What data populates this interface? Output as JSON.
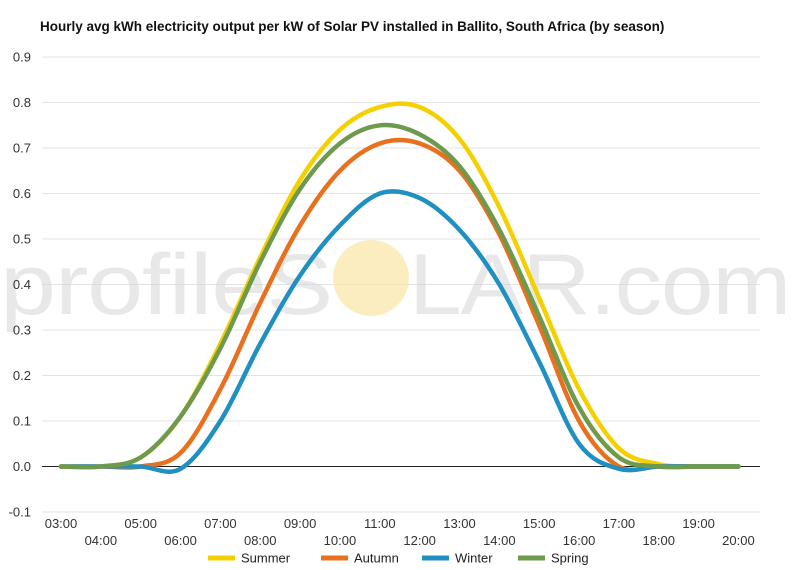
{
  "chart_data": {
    "type": "line",
    "title": "Hourly avg kWh electricity output per kW of Solar PV installed in Ballito, South Africa (by season)",
    "x": [
      "03:00",
      "04:00",
      "05:00",
      "06:00",
      "07:00",
      "08:00",
      "09:00",
      "10:00",
      "11:00",
      "12:00",
      "13:00",
      "14:00",
      "15:00",
      "16:00",
      "17:00",
      "18:00",
      "19:00",
      "20:00"
    ],
    "ylim": [
      -0.1,
      0.9
    ],
    "yticks": [
      "-0.1",
      "0.0",
      "0.1",
      "0.2",
      "0.3",
      "0.4",
      "0.5",
      "0.6",
      "0.7",
      "0.8",
      "0.9"
    ],
    "grid": true,
    "legend_position": "bottom",
    "series": [
      {
        "name": "Summer",
        "color": "#f5d000",
        "values": [
          0.0,
          0.0,
          0.02,
          0.11,
          0.27,
          0.46,
          0.63,
          0.74,
          0.79,
          0.79,
          0.72,
          0.57,
          0.37,
          0.17,
          0.04,
          0.005,
          0.0,
          0.0
        ]
      },
      {
        "name": "Autumn",
        "color": "#e8701e",
        "values": [
          0.0,
          0.0,
          0.0,
          0.03,
          0.17,
          0.36,
          0.53,
          0.65,
          0.71,
          0.71,
          0.65,
          0.51,
          0.31,
          0.1,
          0.0,
          0.0,
          0.0,
          0.0
        ]
      },
      {
        "name": "Winter",
        "color": "#2090c2",
        "values": [
          0.0,
          0.0,
          0.0,
          -0.005,
          0.1,
          0.27,
          0.42,
          0.53,
          0.6,
          0.59,
          0.52,
          0.4,
          0.23,
          0.05,
          -0.005,
          0.0,
          0.0,
          0.0
        ]
      },
      {
        "name": "Spring",
        "color": "#6e9a4d",
        "values": [
          0.0,
          0.0,
          0.02,
          0.11,
          0.26,
          0.45,
          0.61,
          0.71,
          0.75,
          0.73,
          0.66,
          0.52,
          0.33,
          0.13,
          0.02,
          0.0,
          0.0,
          0.0
        ]
      }
    ]
  },
  "watermark": {
    "left": "profileS",
    "right": "LAR.com"
  }
}
